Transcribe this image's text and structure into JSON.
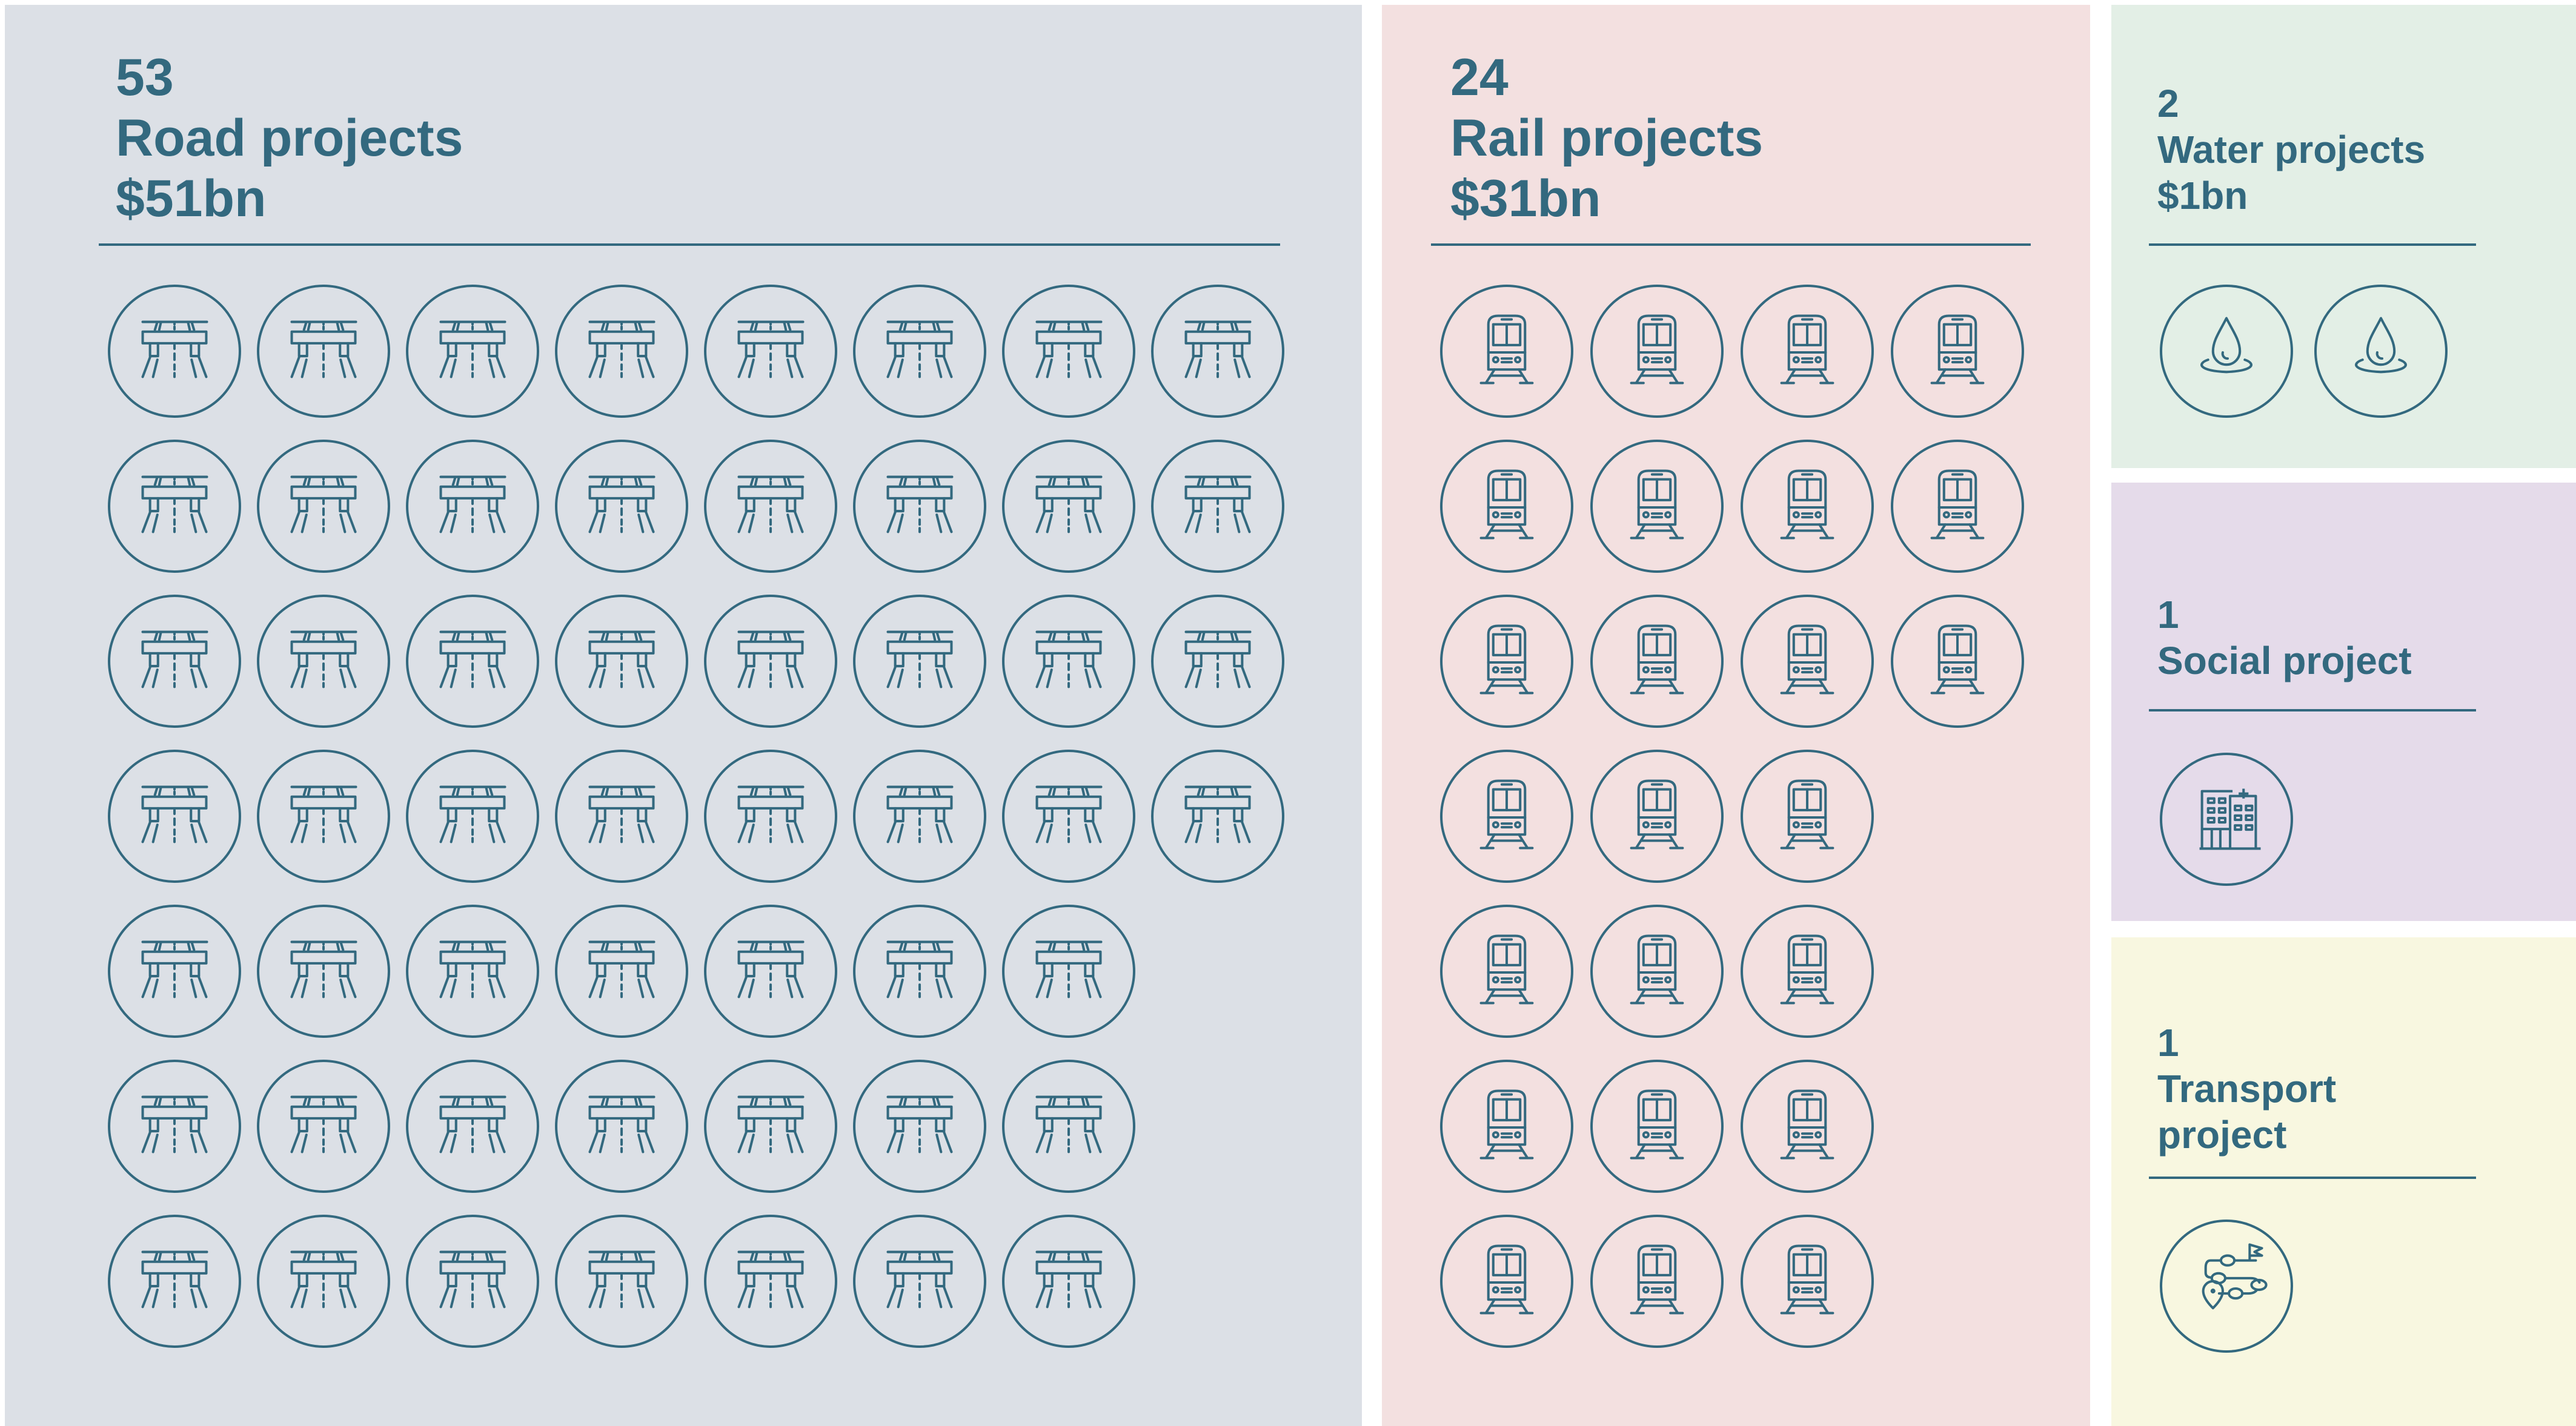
{
  "colors": {
    "text": "#33697f",
    "road_bg": "#dce0e6",
    "rail_bg": "#f3e0e0",
    "water_bg": "#e3efe6",
    "social_bg": "#e5dbea",
    "transport_bg": "#f8f7e0"
  },
  "road": {
    "count": "53",
    "label": "Road projects",
    "value": "$51bn",
    "icon": "highway-overpass-icon",
    "rows": [
      8,
      8,
      8,
      8,
      7,
      7,
      7
    ]
  },
  "rail": {
    "count": "24",
    "label": "Rail projects",
    "value": "$31bn",
    "icon": "train-icon",
    "rows": [
      4,
      4,
      4,
      3,
      3,
      3,
      3
    ]
  },
  "water": {
    "count": "2",
    "label": "Water projects",
    "value": "$1bn",
    "icon": "water-drop-icon",
    "rows": [
      2
    ]
  },
  "social": {
    "count": "1",
    "label": "Social project",
    "icon": "hospital-icon",
    "rows": [
      1
    ]
  },
  "transport": {
    "count": "1",
    "label_line1": "Transport",
    "label_line2": "project",
    "icon": "route-map-icon",
    "rows": [
      1
    ]
  }
}
